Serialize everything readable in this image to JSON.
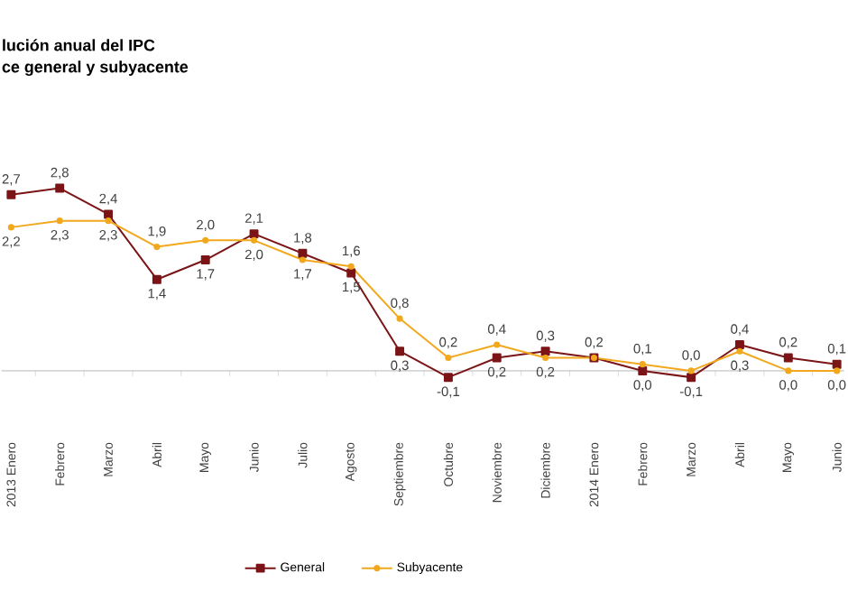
{
  "chart_data": {
    "type": "line",
    "title": "lución anual del IPC",
    "subtitle": "ce general y subyacente",
    "categories": [
      "2013 Enero",
      "Febrero",
      "Marzo",
      "Abril",
      "Mayo",
      "Junio",
      "Julio",
      "Agosto",
      "Septiembre",
      "Octubre",
      "Noviembre",
      "Diciembre",
      "2014 Enero",
      "Febrero",
      "Marzo",
      "Abril",
      "Mayo",
      "Junio"
    ],
    "series": [
      {
        "name": "General",
        "color": "#7b1416",
        "marker": "square",
        "values": [
          2.7,
          2.8,
          2.4,
          1.4,
          1.7,
          2.1,
          1.8,
          1.5,
          0.3,
          -0.1,
          0.2,
          0.3,
          0.2,
          0.0,
          -0.1,
          0.4,
          0.2,
          0.1
        ],
        "value_labels": [
          "2,7",
          "2,8",
          "2,4",
          "1,4",
          "1,7",
          "2,1",
          "1,8",
          "1,5",
          "0,3",
          "-0,1",
          "0,2",
          "0,3",
          "0,2",
          "0,0",
          "-0,1",
          "0,4",
          "0,2",
          "0,1"
        ]
      },
      {
        "name": "Subyacente",
        "color": "#f2a81d",
        "marker": "circle",
        "values": [
          2.2,
          2.3,
          2.3,
          1.9,
          2.0,
          2.0,
          1.7,
          1.6,
          0.8,
          0.2,
          0.4,
          0.2,
          0.2,
          0.1,
          0.0,
          0.3,
          0.0,
          0.0
        ],
        "value_labels": [
          "2,2",
          "2,3",
          "2,3",
          "1,9",
          "2,0",
          "2,0",
          "1,7",
          "1,6",
          "0,8",
          "0,2",
          "0,4",
          "0,2",
          null,
          "0,1",
          "0,0",
          "0,3",
          "0,0",
          "0,0"
        ]
      }
    ],
    "tick_labels": "x",
    "grid": false,
    "legend": "bottom"
  }
}
